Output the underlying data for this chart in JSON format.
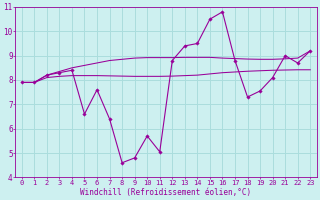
{
  "xlabel": "Windchill (Refroidissement éolien,°C)",
  "background_color": "#cdf0f0",
  "grid_color": "#aadddd",
  "line_color": "#990099",
  "spine_color": "#8800aa",
  "x_data": [
    0,
    1,
    2,
    3,
    4,
    5,
    6,
    7,
    8,
    9,
    10,
    11,
    12,
    13,
    14,
    15,
    16,
    17,
    18,
    19,
    20,
    21,
    22,
    23
  ],
  "y_main": [
    7.9,
    7.9,
    8.2,
    8.3,
    8.4,
    6.6,
    7.6,
    6.4,
    4.6,
    4.8,
    5.7,
    5.05,
    8.8,
    9.4,
    9.5,
    10.5,
    10.8,
    8.8,
    7.3,
    7.55,
    8.1,
    9.0,
    8.7,
    9.2
  ],
  "y_smooth1": [
    7.9,
    7.9,
    8.2,
    8.35,
    8.5,
    8.6,
    8.7,
    8.8,
    8.85,
    8.9,
    8.92,
    8.92,
    8.92,
    8.93,
    8.93,
    8.93,
    8.9,
    8.88,
    8.86,
    8.85,
    8.85,
    8.87,
    8.9,
    9.2
  ],
  "y_smooth2": [
    7.9,
    7.9,
    8.1,
    8.15,
    8.18,
    8.18,
    8.18,
    8.17,
    8.16,
    8.15,
    8.15,
    8.15,
    8.16,
    8.18,
    8.2,
    8.25,
    8.3,
    8.33,
    8.36,
    8.38,
    8.4,
    8.41,
    8.42,
    8.42
  ],
  "ylim": [
    4,
    11
  ],
  "xlim": [
    -0.5,
    23.5
  ],
  "yticks": [
    4,
    5,
    6,
    7,
    8,
    9,
    10,
    11
  ],
  "xticks": [
    0,
    1,
    2,
    3,
    4,
    5,
    6,
    7,
    8,
    9,
    10,
    11,
    12,
    13,
    14,
    15,
    16,
    17,
    18,
    19,
    20,
    21,
    22,
    23
  ],
  "tick_fontsize": 5.0,
  "xlabel_fontsize": 5.5
}
